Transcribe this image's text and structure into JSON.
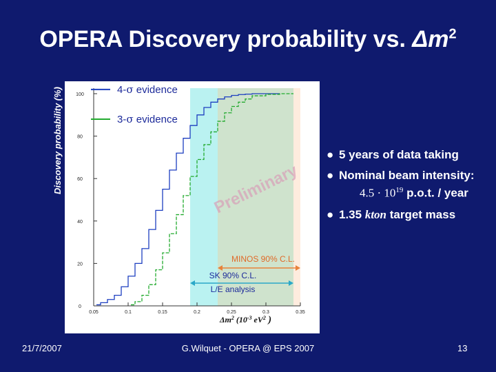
{
  "slide": {
    "title_prefix": "OPERA Discovery probability vs. ",
    "title_symbol": "Δm",
    "title_exp": "2",
    "date": "21/7/2007",
    "footer": "G.Wilquet - OPERA @ EPS 2007",
    "page": "13"
  },
  "bullets": {
    "b1": "5 years of data taking",
    "b2": "Nominal beam intensity:",
    "pot_base": "4.5 · 10",
    "pot_exp": "19",
    "pot_unit": " p.o.t.  / year",
    "b3_value": "1.35 ",
    "b3_unit": "kton",
    "b3_rest": " target mass",
    "bullet_symbol": "●"
  },
  "chart_data": {
    "type": "line",
    "ylabel": "Discovery probability (%)",
    "xlabel_main": "Δm",
    "xlabel_exp": "2",
    "xlabel_units": "(10",
    "xlabel_units_exp": "-3",
    "xlabel_units_end": "eV",
    "xlabel_units_end_exp": "2",
    "xlabel_close": ")",
    "xlim": [
      0.05,
      0.35
    ],
    "ylim": [
      0,
      100
    ],
    "x_ticks": [
      0.05,
      0.1,
      0.15,
      0.2,
      0.25,
      0.3,
      0.35
    ],
    "x_tick_labels": [
      "0.05",
      "0.1",
      "0.15",
      "0.2",
      "0.25",
      "0.3",
      "0.35"
    ],
    "y_ticks": [
      0,
      20,
      40,
      60,
      80,
      100
    ],
    "y_tick_labels": [
      "0",
      "20",
      "40",
      "60",
      "80",
      "100"
    ],
    "grid": false,
    "series": [
      {
        "name": "4-σ evidence",
        "prefix": "4-",
        "sigma": "σ",
        "suffix": " evidence",
        "color": "#1c3ec0",
        "legend_y": 102,
        "x": [
          0.06,
          0.07,
          0.08,
          0.09,
          0.1,
          0.11,
          0.12,
          0.13,
          0.14,
          0.15,
          0.16,
          0.17,
          0.18,
          0.19,
          0.2,
          0.21,
          0.22,
          0.23,
          0.24,
          0.25,
          0.26,
          0.27,
          0.28,
          0.3,
          0.32
        ],
        "y": [
          0.5,
          1.5,
          3,
          5,
          9,
          14,
          20,
          27,
          36,
          45,
          55,
          64,
          72,
          79,
          85,
          90,
          93.5,
          96,
          97.5,
          98.5,
          99.2,
          99.6,
          99.8,
          100,
          100
        ]
      },
      {
        "name": "3-σ evidence",
        "prefix": "3-",
        "sigma": "σ",
        "suffix": " evidence",
        "color": "#22aa2e",
        "legend_y": 88,
        "x": [
          0.11,
          0.12,
          0.13,
          0.14,
          0.15,
          0.16,
          0.17,
          0.18,
          0.19,
          0.2,
          0.21,
          0.22,
          0.23,
          0.24,
          0.25,
          0.26,
          0.27,
          0.28,
          0.3,
          0.32,
          0.34
        ],
        "y": [
          0.5,
          2,
          5,
          10,
          17,
          25,
          34,
          43,
          52,
          61,
          69,
          76,
          82,
          87,
          91,
          94,
          96,
          97.5,
          99,
          99.7,
          100
        ]
      }
    ],
    "bands": [
      {
        "name": "SK 90% C.L. L/E analysis",
        "x0": 0.19,
        "x1": 0.34,
        "color": "#aef0ee"
      },
      {
        "name": "MINOS 90% C.L.",
        "x0": 0.23,
        "x1": 0.35,
        "color": "#fde0c8"
      }
    ],
    "preliminary": "Preliminary",
    "annotations": {
      "minos_label": "MINOS 90% C.L.",
      "sk_label": "SK 90% C.L.",
      "le_label": "L/E analysis"
    }
  }
}
